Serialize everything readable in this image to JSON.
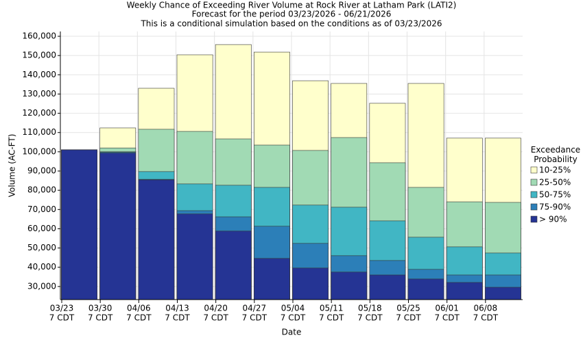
{
  "chart_data": {
    "type": "bar",
    "title": "Weekly Chance of Exceeding River Volume at Rock River at Latham Park (LATI2)",
    "subtitle": "Forecast for the period 03/23/2026 - 06/21/2026",
    "note": "This is a conditional simulation based on the conditions as of 03/23/2026",
    "x_label": "Date",
    "y_label": "Volume (AC-FT)",
    "legend_title": "Exceedance Probability",
    "categories": [
      "03/23",
      "03/30",
      "04/06",
      "04/13",
      "04/20",
      "04/27",
      "05/04",
      "05/11",
      "05/18",
      "05/25",
      "06/01",
      "06/08"
    ],
    "category_suffix": "7 CDT",
    "series": [
      {
        "name": "10-25%",
        "color": "#ffffcc",
        "values": [
          101000,
          112400,
          133000,
          150400,
          155700,
          151800,
          136900,
          135500,
          125200,
          135500,
          107100,
          107100
        ]
      },
      {
        "name": "25-50%",
        "color": "#a1dab4",
        "values": [
          101000,
          102000,
          111700,
          110600,
          106700,
          103500,
          100700,
          107400,
          94300,
          81500,
          74000,
          73700
        ]
      },
      {
        "name": "50-75%",
        "color": "#41b6c4",
        "values": [
          101000,
          100000,
          89700,
          83300,
          82600,
          81500,
          72300,
          71200,
          64100,
          55600,
          50600,
          47400
        ]
      },
      {
        "name": "75-90%",
        "color": "#2c7fb8",
        "values": [
          101000,
          99700,
          85700,
          69400,
          66200,
          61300,
          52400,
          46000,
          43500,
          38900,
          36000,
          36000
        ]
      },
      {
        "name": "> 90%",
        "color": "#253494",
        "values": [
          101000,
          99300,
          85400,
          67700,
          58800,
          44600,
          39600,
          37500,
          36000,
          33900,
          32100,
          29600
        ]
      }
    ],
    "ylim": [
      23200,
      162500
    ],
    "yticks": [
      {
        "value": 30000,
        "label": "30,000"
      },
      {
        "value": 40000,
        "label": "40,000"
      },
      {
        "value": 50000,
        "label": "50,000"
      },
      {
        "value": 60000,
        "label": "60,000"
      },
      {
        "value": 70000,
        "label": "70,000"
      },
      {
        "value": 80000,
        "label": "80,000"
      },
      {
        "value": 90000,
        "label": "90,000"
      },
      {
        "value": 100000,
        "label": "100,000"
      },
      {
        "value": 110000,
        "label": "110,000"
      },
      {
        "value": 120000,
        "label": "120,000"
      },
      {
        "value": 130000,
        "label": "130,000"
      },
      {
        "value": 140000,
        "label": "140,000"
      },
      {
        "value": 150000,
        "label": "150,000"
      },
      {
        "value": 160000,
        "label": "160,000"
      }
    ],
    "grid": true
  }
}
